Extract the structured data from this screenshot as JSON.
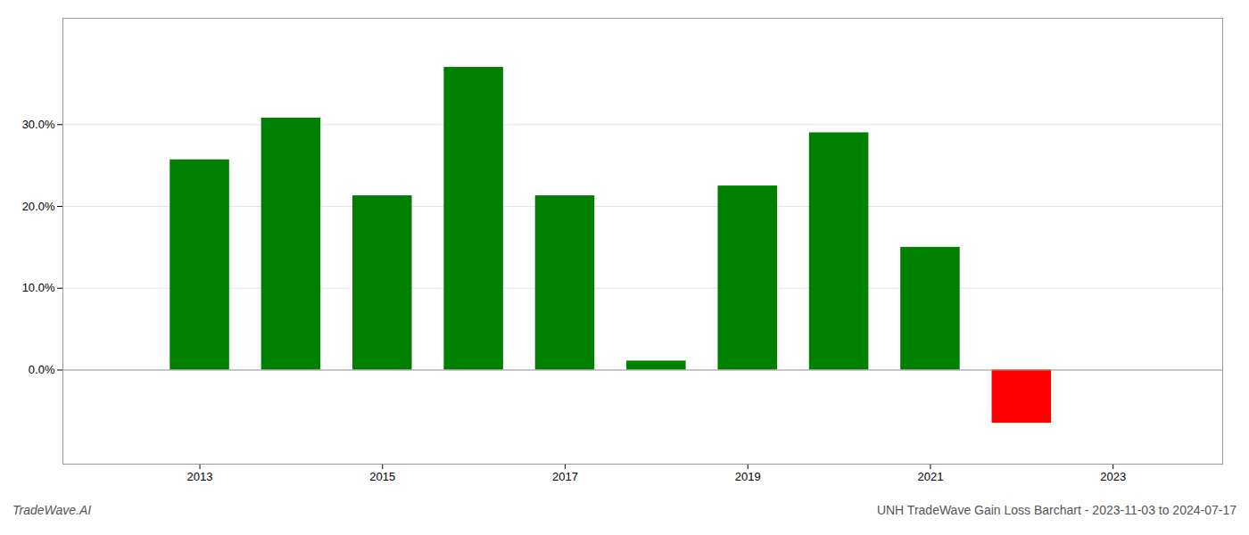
{
  "chart_data": {
    "type": "bar",
    "x": [
      2013,
      2014,
      2015,
      2016,
      2017,
      2018,
      2019,
      2020,
      2021,
      2022
    ],
    "values": [
      0.257,
      0.308,
      0.213,
      0.37,
      0.213,
      0.011,
      0.225,
      0.29,
      0.15,
      -0.065
    ],
    "colors": [
      "#008000",
      "#008000",
      "#008000",
      "#008000",
      "#008000",
      "#008000",
      "#008000",
      "#008000",
      "#008000",
      "#ff0000"
    ],
    "xlim": [
      2011.5,
      2024.2
    ],
    "xticks": [
      2013,
      2015,
      2017,
      2019,
      2021,
      2023
    ],
    "ylim": [
      -0.115,
      0.43
    ],
    "yticks": [
      {
        "value": 0.0,
        "label": "0.0%"
      },
      {
        "value": 0.1,
        "label": "10.0%"
      },
      {
        "value": 0.2,
        "label": "20.0%"
      },
      {
        "value": 0.3,
        "label": "30.0%"
      }
    ],
    "grid": true,
    "annotations": [
      "TradeWave.AI",
      "UNH TradeWave Gain Loss Barchart - 2023-11-03 to 2024-07-17"
    ]
  }
}
